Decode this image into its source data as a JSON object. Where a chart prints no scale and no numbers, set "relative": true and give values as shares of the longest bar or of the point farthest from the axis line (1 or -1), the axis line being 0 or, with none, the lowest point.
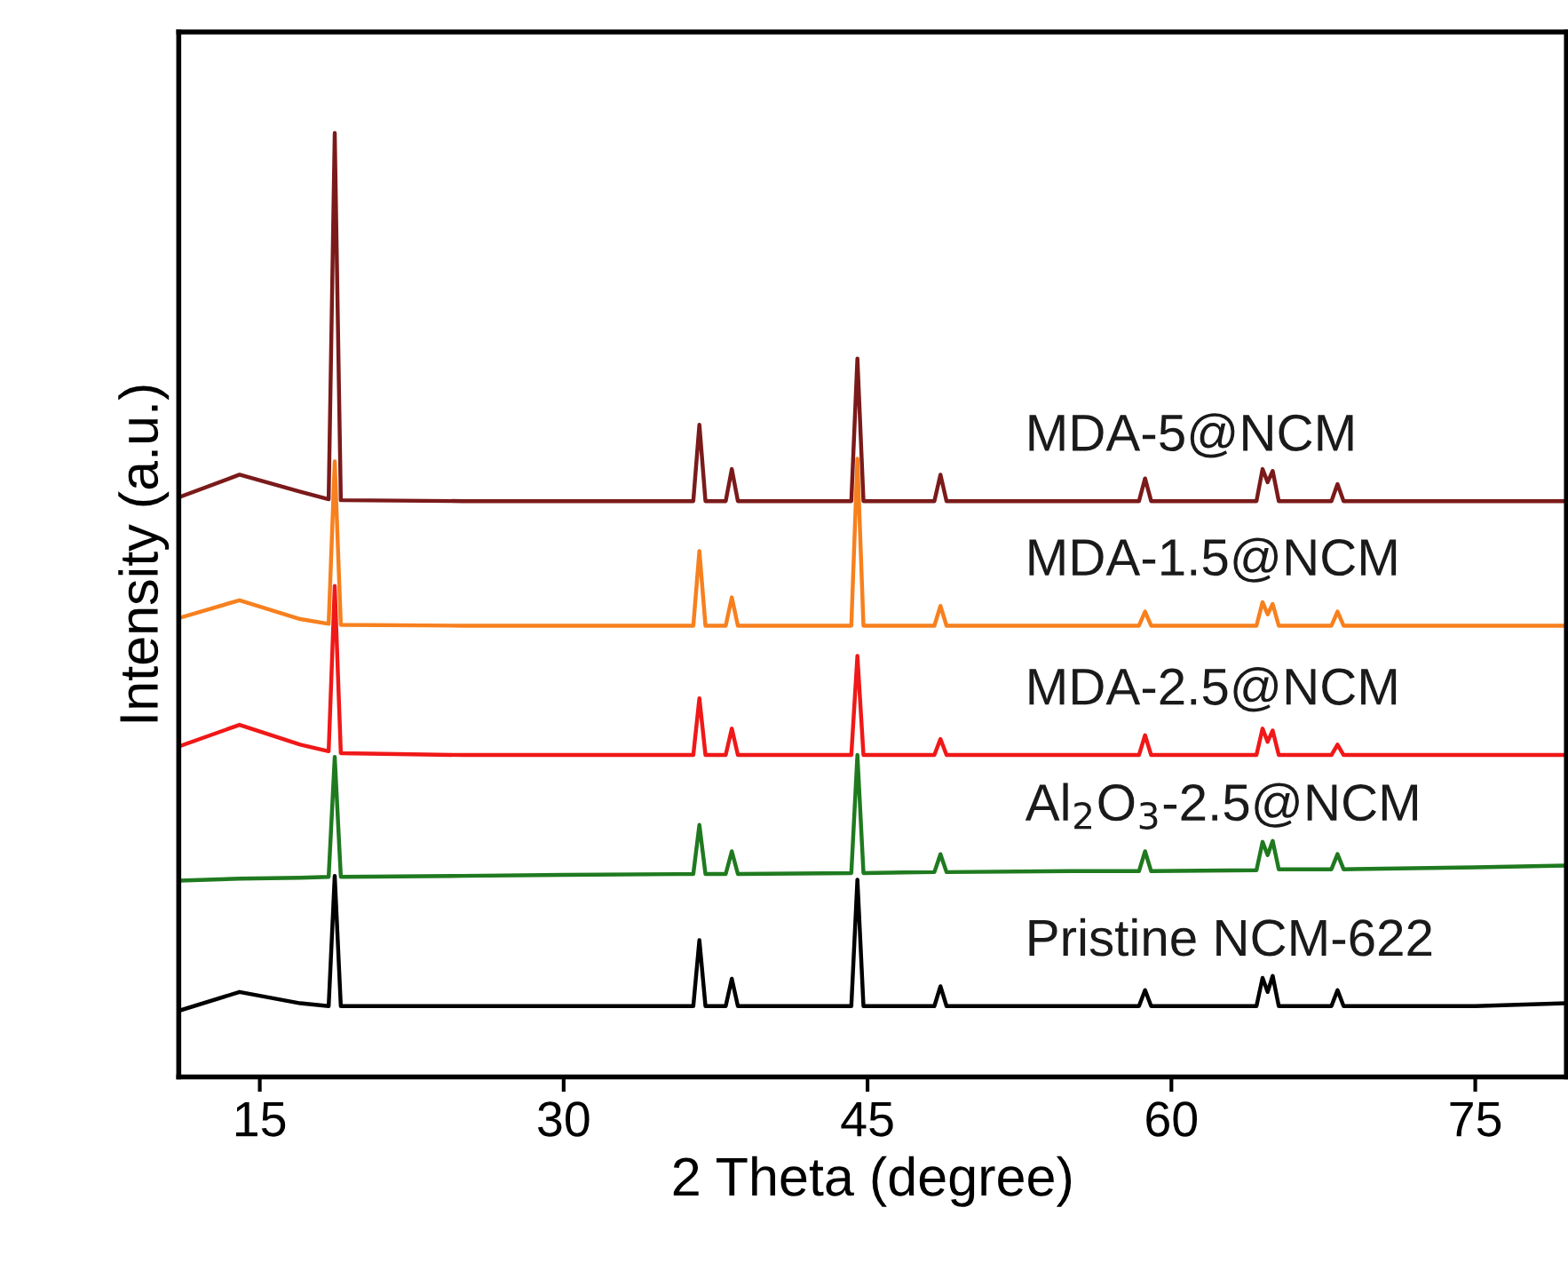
{
  "chart_data": {
    "type": "line",
    "xlabel": "2 Theta (degree)",
    "ylabel": "Intensity (a.u.)",
    "relative": true,
    "tick_labels": "x",
    "xlim": [
      11,
      79.5
    ],
    "xticks": [
      15,
      30,
      45,
      60,
      75
    ],
    "x": [
      11,
      14,
      17,
      18.4,
      18.7,
      19.0,
      25,
      30,
      36.4,
      36.7,
      37.0,
      38.0,
      38.3,
      38.6,
      44.2,
      44.5,
      44.8,
      48.3,
      48.6,
      48.9,
      55,
      58.4,
      58.7,
      59.0,
      64.2,
      64.5,
      64.75,
      65.0,
      65.3,
      67.9,
      68.2,
      68.5,
      75,
      79.5
    ],
    "series": [
      {
        "name": "Pristine NCM-622",
        "color": "#000000",
        "values": [
          0.07,
          0.09,
          0.078,
          0.075,
          0.213,
          0.075,
          0.075,
          0.075,
          0.075,
          0.145,
          0.075,
          0.075,
          0.104,
          0.075,
          0.075,
          0.209,
          0.075,
          0.075,
          0.096,
          0.075,
          0.075,
          0.075,
          0.092,
          0.075,
          0.075,
          0.105,
          0.09,
          0.107,
          0.075,
          0.075,
          0.092,
          0.075,
          0.075,
          0.078
        ]
      },
      {
        "name": "Al$_{2}$O$_{3}$-2.5@NCM",
        "color": "#1f7a1f",
        "values": [
          0.208,
          0.21,
          0.211,
          0.212,
          0.339,
          0.212,
          0.213,
          0.214,
          0.215,
          0.267,
          0.215,
          0.215,
          0.239,
          0.215,
          0.216,
          0.341,
          0.216,
          0.217,
          0.236,
          0.217,
          0.218,
          0.218,
          0.239,
          0.218,
          0.219,
          0.249,
          0.235,
          0.25,
          0.22,
          0.22,
          0.236,
          0.22,
          0.222,
          0.224
        ]
      },
      {
        "name": "MDA-2.5@NCM",
        "color": "#f01818",
        "values": [
          0.35,
          0.373,
          0.352,
          0.345,
          0.52,
          0.343,
          0.341,
          0.341,
          0.341,
          0.401,
          0.341,
          0.341,
          0.369,
          0.341,
          0.341,
          0.446,
          0.341,
          0.341,
          0.358,
          0.341,
          0.341,
          0.341,
          0.362,
          0.341,
          0.341,
          0.369,
          0.355,
          0.367,
          0.341,
          0.341,
          0.352,
          0.341,
          0.341,
          0.341
        ]
      },
      {
        "name": "MDA-1.5@NCM",
        "color": "#f7801e",
        "values": [
          0.486,
          0.505,
          0.485,
          0.48,
          0.652,
          0.479,
          0.478,
          0.478,
          0.478,
          0.557,
          0.478,
          0.478,
          0.508,
          0.478,
          0.478,
          0.655,
          0.478,
          0.478,
          0.499,
          0.478,
          0.478,
          0.478,
          0.493,
          0.478,
          0.478,
          0.503,
          0.49,
          0.501,
          0.478,
          0.478,
          0.493,
          0.478,
          0.478,
          0.478
        ]
      },
      {
        "name": "MDA-5@NCM",
        "color": "#7b1a1a",
        "values": [
          0.614,
          0.638,
          0.62,
          0.612,
          1.0,
          0.611,
          0.61,
          0.61,
          0.61,
          0.691,
          0.61,
          0.61,
          0.644,
          0.61,
          0.61,
          0.761,
          0.61,
          0.61,
          0.638,
          0.61,
          0.61,
          0.61,
          0.634,
          0.61,
          0.61,
          0.644,
          0.63,
          0.642,
          0.61,
          0.61,
          0.628,
          0.61,
          0.61,
          0.61
        ]
      }
    ]
  }
}
